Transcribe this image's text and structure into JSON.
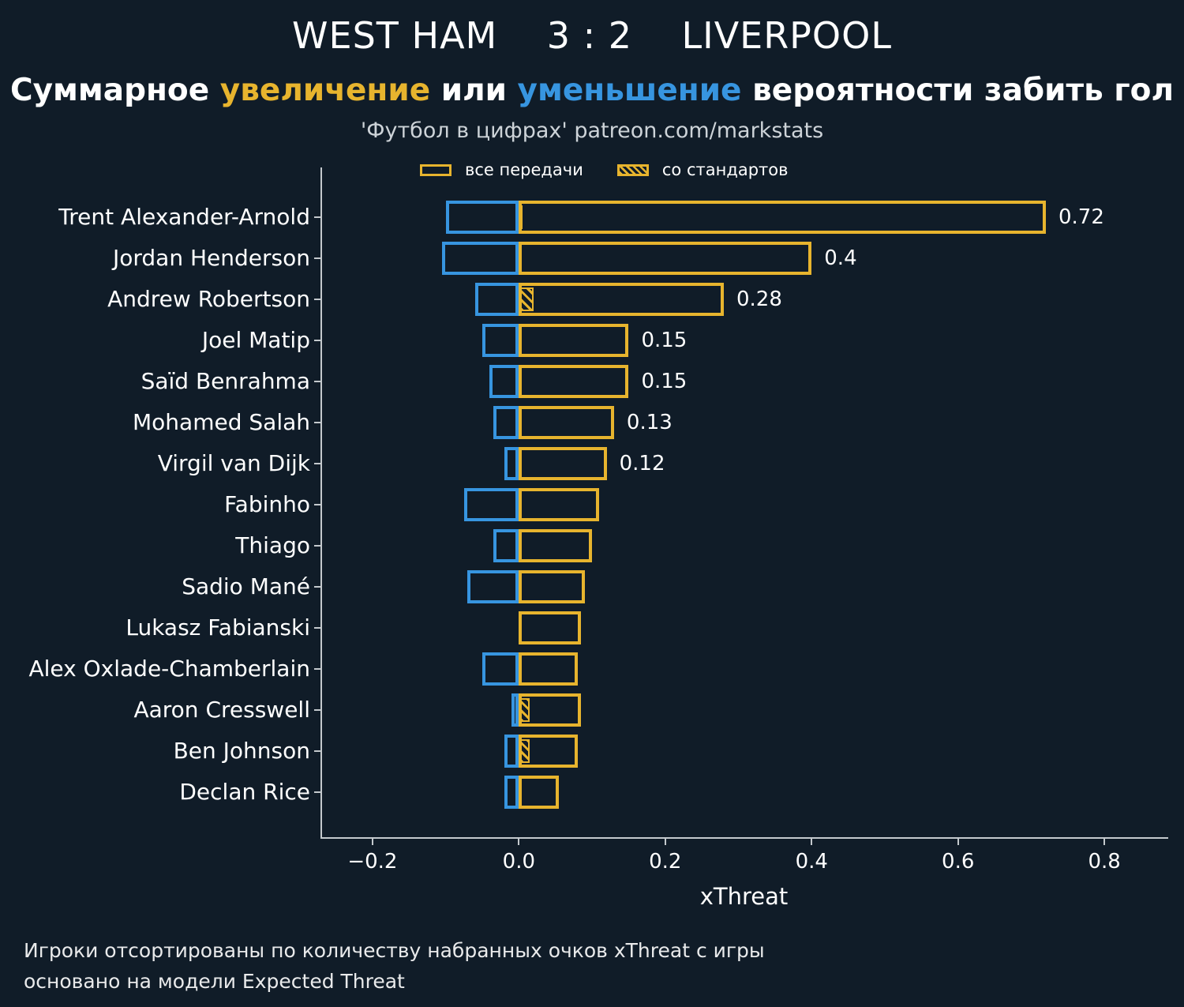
{
  "title": "WEST HAM    3 : 2    LIVERPOOL",
  "subtitle": {
    "part1": "Суммарное ",
    "highlight_increase": "увеличение",
    "part2": " или ",
    "highlight_decrease": "уменьшение",
    "part3": " вероятности забить гол"
  },
  "credit": "'Футбол в цифрах' patreon.com/markstats",
  "legend": {
    "all_passes": "все передачи",
    "set_pieces": "со стандартов"
  },
  "footer": {
    "line1": "Игроки отсортированы по количеству набранных очков xThreat с игры",
    "line2": "основано на модели Expected Threat"
  },
  "colors": {
    "positive": "#e7b42e",
    "negative": "#3795e0",
    "background": "#101c28",
    "axis": "#c4c9cd"
  },
  "chart_data": {
    "type": "bar",
    "orientation": "horizontal",
    "title": "WEST HAM 3 : 2 LIVERPOOL",
    "xlabel": "xThreat",
    "ylabel": "",
    "xlim": [
      -0.27,
      0.885
    ],
    "xticks": [
      -0.2,
      0.0,
      0.2,
      0.4,
      0.6,
      0.8
    ],
    "grid": false,
    "legend_position": "top-inside",
    "series_note": "positive = все передачи (gold outline), negative = уменьшение (blue outline), set_piece = со стандартов (gold hatched)",
    "players": [
      {
        "name": "Trent Alexander-Arnold",
        "positive": 0.72,
        "negative": -0.1,
        "set_piece": 0.005,
        "label": "0.72"
      },
      {
        "name": "Jordan Henderson",
        "positive": 0.4,
        "negative": -0.105,
        "set_piece": 0,
        "label": "0.4"
      },
      {
        "name": "Andrew Robertson",
        "positive": 0.28,
        "negative": -0.06,
        "set_piece": 0.02,
        "label": "0.28"
      },
      {
        "name": "Joel Matip",
        "positive": 0.15,
        "negative": -0.05,
        "set_piece": 0,
        "label": "0.15"
      },
      {
        "name": "Saïd Benrahma",
        "positive": 0.15,
        "negative": -0.04,
        "set_piece": 0,
        "label": "0.15"
      },
      {
        "name": "Mohamed Salah",
        "positive": 0.13,
        "negative": -0.035,
        "set_piece": 0,
        "label": "0.13"
      },
      {
        "name": "Virgil van Dijk",
        "positive": 0.12,
        "negative": -0.02,
        "set_piece": 0,
        "label": "0.12"
      },
      {
        "name": "Fabinho",
        "positive": 0.11,
        "negative": -0.075,
        "set_piece": 0,
        "label": ""
      },
      {
        "name": "Thiago",
        "positive": 0.1,
        "negative": -0.035,
        "set_piece": 0,
        "label": ""
      },
      {
        "name": "Sadio Mané",
        "positive": 0.09,
        "negative": -0.07,
        "set_piece": 0,
        "label": ""
      },
      {
        "name": "Lukasz Fabianski",
        "positive": 0.085,
        "negative": 0,
        "set_piece": 0,
        "label": ""
      },
      {
        "name": "Alex Oxlade-Chamberlain",
        "positive": 0.08,
        "negative": -0.05,
        "set_piece": 0,
        "label": ""
      },
      {
        "name": "Aaron Cresswell",
        "positive": 0.085,
        "negative": -0.01,
        "set_piece": 0.015,
        "label": ""
      },
      {
        "name": "Ben Johnson",
        "positive": 0.08,
        "negative": -0.02,
        "set_piece": 0.015,
        "label": ""
      },
      {
        "name": "Declan Rice",
        "positive": 0.055,
        "negative": -0.02,
        "set_piece": 0,
        "label": ""
      }
    ]
  }
}
